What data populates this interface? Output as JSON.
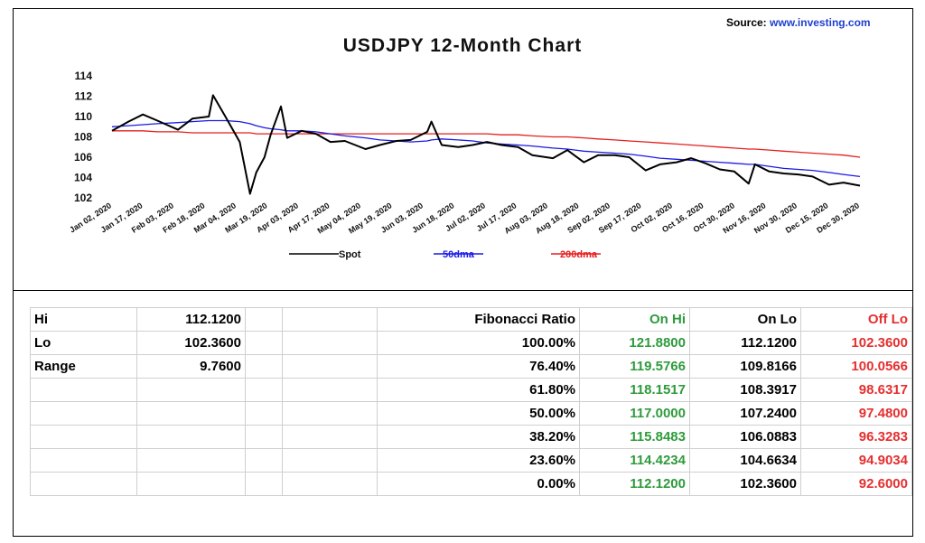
{
  "source": {
    "label": "Source:",
    "url": "www.investing.com"
  },
  "chart_data": {
    "type": "line",
    "title": "USDJPY 12-Month Chart",
    "xlabel": "",
    "ylabel": "",
    "ylim": [
      102,
      114
    ],
    "yticks": [
      "114",
      "112",
      "110",
      "108",
      "106",
      "104",
      "102"
    ],
    "grid": false,
    "legend": "bottom",
    "xticks": [
      "Jan 02, 2020",
      "Jan 17, 2020",
      "Feb 03, 2020",
      "Feb 18, 2020",
      "Mar 04, 2020",
      "Mar 19, 2020",
      "Apr 03, 2020",
      "Apr 17, 2020",
      "May 04, 2020",
      "May 19, 2020",
      "Jun 03, 2020",
      "Jun 18, 2020",
      "Jul 02, 2020",
      "Jul 17, 2020",
      "Aug 03, 2020",
      "Aug 18, 2020",
      "Sep 02, 2020",
      "Sep 17, 2020",
      "Oct 02, 2020",
      "Oct 16, 2020",
      "Oct 30, 2020",
      "Nov 16, 2020",
      "Nov 30, 2020",
      "Dec 15, 2020",
      "Dec 30, 2020"
    ],
    "x": [
      "2020-01-02",
      "2020-01-10",
      "2020-01-17",
      "2020-01-24",
      "2020-02-03",
      "2020-02-10",
      "2020-02-18",
      "2020-02-20",
      "2020-02-26",
      "2020-03-04",
      "2020-03-09",
      "2020-03-12",
      "2020-03-16",
      "2020-03-19",
      "2020-03-24",
      "2020-03-27",
      "2020-04-03",
      "2020-04-10",
      "2020-04-17",
      "2020-04-24",
      "2020-05-04",
      "2020-05-11",
      "2020-05-19",
      "2020-05-26",
      "2020-06-03",
      "2020-06-05",
      "2020-06-10",
      "2020-06-18",
      "2020-06-25",
      "2020-07-02",
      "2020-07-09",
      "2020-07-17",
      "2020-07-24",
      "2020-08-03",
      "2020-08-10",
      "2020-08-18",
      "2020-08-25",
      "2020-09-02",
      "2020-09-09",
      "2020-09-17",
      "2020-09-24",
      "2020-10-02",
      "2020-10-09",
      "2020-10-16",
      "2020-10-23",
      "2020-10-30",
      "2020-11-06",
      "2020-11-09",
      "2020-11-16",
      "2020-11-23",
      "2020-11-30",
      "2020-12-07",
      "2020-12-15",
      "2020-12-22",
      "2020-12-30"
    ],
    "series": [
      {
        "name": "Spot",
        "color": "#000000",
        "values": [
          108.6,
          109.5,
          110.2,
          109.6,
          108.7,
          109.8,
          110.0,
          112.1,
          110.0,
          107.5,
          102.4,
          104.5,
          106.0,
          108.2,
          111.0,
          107.9,
          108.6,
          108.3,
          107.5,
          107.6,
          106.8,
          107.2,
          107.6,
          107.7,
          108.5,
          109.5,
          107.2,
          107.0,
          107.2,
          107.5,
          107.2,
          107.0,
          106.2,
          105.9,
          106.7,
          105.5,
          106.2,
          106.2,
          106.0,
          104.7,
          105.3,
          105.5,
          105.9,
          105.4,
          104.8,
          104.6,
          103.4,
          105.3,
          104.6,
          104.4,
          104.3,
          104.1,
          103.3,
          103.5,
          103.2
        ]
      },
      {
        "name": "50dma",
        "color": "#1a1ae6",
        "values": [
          109.0,
          109.1,
          109.2,
          109.3,
          109.4,
          109.5,
          109.6,
          109.6,
          109.6,
          109.5,
          109.3,
          109.1,
          108.9,
          108.8,
          108.7,
          108.6,
          108.6,
          108.5,
          108.3,
          108.1,
          107.9,
          107.7,
          107.6,
          107.5,
          107.6,
          107.7,
          107.8,
          107.7,
          107.6,
          107.4,
          107.3,
          107.2,
          107.1,
          106.9,
          106.8,
          106.6,
          106.5,
          106.4,
          106.3,
          106.1,
          105.9,
          105.8,
          105.7,
          105.6,
          105.5,
          105.4,
          105.3,
          105.3,
          105.1,
          104.9,
          104.8,
          104.7,
          104.5,
          104.3,
          104.1
        ]
      },
      {
        "name": "200dma",
        "color": "#e61e1e",
        "values": [
          108.6,
          108.6,
          108.6,
          108.5,
          108.5,
          108.4,
          108.4,
          108.4,
          108.4,
          108.4,
          108.4,
          108.3,
          108.3,
          108.3,
          108.3,
          108.3,
          108.3,
          108.3,
          108.3,
          108.3,
          108.3,
          108.3,
          108.3,
          108.3,
          108.3,
          108.3,
          108.3,
          108.3,
          108.3,
          108.3,
          108.2,
          108.2,
          108.1,
          108.0,
          108.0,
          107.9,
          107.8,
          107.7,
          107.6,
          107.5,
          107.4,
          107.3,
          107.2,
          107.1,
          107.0,
          106.9,
          106.8,
          106.8,
          106.7,
          106.6,
          106.5,
          106.4,
          106.3,
          106.2,
          106.0
        ]
      }
    ]
  },
  "table": {
    "left_rows": [
      {
        "label": "Hi",
        "value": "112.1200"
      },
      {
        "label": "Lo",
        "value": "102.3600"
      },
      {
        "label": "Range",
        "value": "9.7600"
      },
      {
        "label": "",
        "value": ""
      },
      {
        "label": "",
        "value": ""
      },
      {
        "label": "",
        "value": ""
      },
      {
        "label": "",
        "value": ""
      },
      {
        "label": "",
        "value": ""
      }
    ],
    "fib_header": {
      "ratio": "Fibonacci  Ratio",
      "on_hi": "On Hi",
      "on_lo": "On Lo",
      "off_lo": "Off Lo"
    },
    "fib_rows": [
      {
        "ratio": "100.00%",
        "on_hi": "121.8800",
        "on_lo": "112.1200",
        "off_lo": "102.3600"
      },
      {
        "ratio": "76.40%",
        "on_hi": "119.5766",
        "on_lo": "109.8166",
        "off_lo": "100.0566"
      },
      {
        "ratio": "61.80%",
        "on_hi": "118.1517",
        "on_lo": "108.3917",
        "off_lo": "98.6317"
      },
      {
        "ratio": "50.00%",
        "on_hi": "117.0000",
        "on_lo": "107.2400",
        "off_lo": "97.4800"
      },
      {
        "ratio": "38.20%",
        "on_hi": "115.8483",
        "on_lo": "106.0883",
        "off_lo": "96.3283"
      },
      {
        "ratio": "23.60%",
        "on_hi": "114.4234",
        "on_lo": "104.6634",
        "off_lo": "94.9034"
      },
      {
        "ratio": "0.00%",
        "on_hi": "112.1200",
        "on_lo": "102.3600",
        "off_lo": "92.6000"
      }
    ]
  }
}
